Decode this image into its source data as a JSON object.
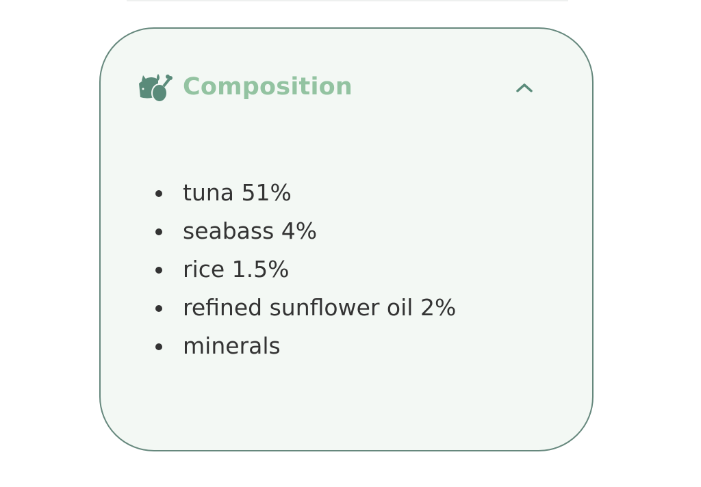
{
  "section": {
    "title": "Composition",
    "icon": "fish-chicken-icon",
    "expanded": true,
    "toggle_icon": "chevron-up-icon",
    "items": [
      "tuna 51%",
      "seabass 4%",
      "rice 1.5%",
      "refined sunflower oil 2%",
      "minerals"
    ]
  },
  "colors": {
    "border": "#66887d",
    "background": "#f3f8f4",
    "title": "#93c3a1",
    "icon": "#5a8b7a",
    "text": "#333333"
  }
}
